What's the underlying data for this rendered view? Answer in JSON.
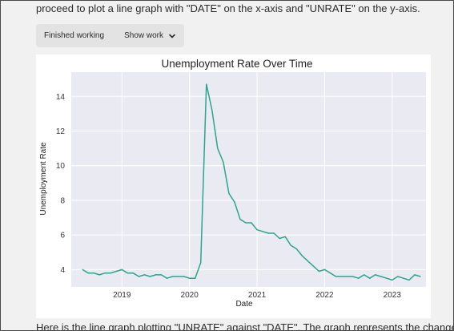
{
  "chat": {
    "intro_text": "proceed to plot a line graph with \"DATE\" on the x-axis and \"UNRATE\" on the y-axis.",
    "work_status": "Finished working",
    "show_work_label": "Show work",
    "outro_text": "Here is the line graph plotting \"UNRATE\" against \"DATE\". The graph represents the change"
  },
  "icons": {
    "show_work_chevron": "chevron-down-icon"
  },
  "colors": {
    "line": "#2ca58d",
    "plot_bg": "#eaeaf2",
    "grid": "#ffffff"
  },
  "chart_data": {
    "type": "line",
    "title": "Unemployment Rate Over Time",
    "xlabel": "Date",
    "ylabel": "Unemployment Rate",
    "x_ticks": [
      "2019",
      "2020",
      "2021",
      "2022",
      "2023"
    ],
    "y_ticks": [
      "4",
      "6",
      "8",
      "10",
      "12",
      "14"
    ],
    "xlim": [
      "2018-04",
      "2023-07"
    ],
    "ylim": [
      3.0,
      15.4
    ],
    "grid": true,
    "series": [
      {
        "x": [
          "2018-06",
          "2018-07",
          "2018-08",
          "2018-09",
          "2018-10",
          "2018-11",
          "2018-12",
          "2019-01",
          "2019-02",
          "2019-03",
          "2019-04",
          "2019-05",
          "2019-06",
          "2019-07",
          "2019-08",
          "2019-09",
          "2019-10",
          "2019-11",
          "2019-12",
          "2020-01",
          "2020-02",
          "2020-03",
          "2020-04",
          "2020-05",
          "2020-06",
          "2020-07",
          "2020-08",
          "2020-09",
          "2020-10",
          "2020-11",
          "2020-12",
          "2021-01",
          "2021-02",
          "2021-03",
          "2021-04",
          "2021-05",
          "2021-06",
          "2021-07",
          "2021-08",
          "2021-09",
          "2021-10",
          "2021-11",
          "2021-12",
          "2022-01",
          "2022-02",
          "2022-03",
          "2022-04",
          "2022-05",
          "2022-06",
          "2022-07",
          "2022-08",
          "2022-09",
          "2022-10",
          "2022-11",
          "2022-12",
          "2023-01",
          "2023-02",
          "2023-03",
          "2023-04",
          "2023-05",
          "2023-06"
        ],
        "values": [
          4.0,
          3.8,
          3.8,
          3.7,
          3.8,
          3.8,
          3.9,
          4.0,
          3.8,
          3.8,
          3.6,
          3.7,
          3.6,
          3.7,
          3.7,
          3.5,
          3.6,
          3.6,
          3.6,
          3.5,
          3.5,
          4.4,
          14.7,
          13.2,
          11.0,
          10.2,
          8.4,
          7.9,
          6.9,
          6.7,
          6.7,
          6.3,
          6.2,
          6.1,
          6.1,
          5.8,
          5.9,
          5.4,
          5.2,
          4.8,
          4.5,
          4.2,
          3.9,
          4.0,
          3.8,
          3.6,
          3.6,
          3.6,
          3.6,
          3.5,
          3.7,
          3.5,
          3.7,
          3.6,
          3.5,
          3.4,
          3.6,
          3.5,
          3.4,
          3.7,
          3.6
        ]
      }
    ]
  }
}
